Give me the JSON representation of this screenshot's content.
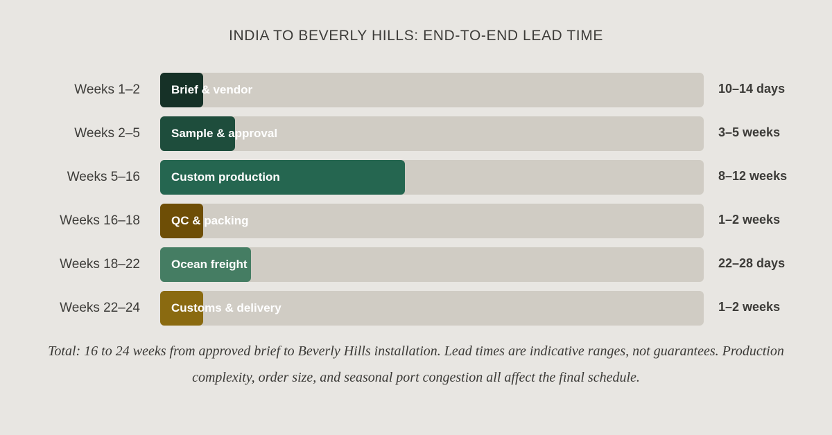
{
  "chart_data": {
    "type": "bar",
    "orientation": "horizontal",
    "title": "INDIA TO BEVERLY HILLS: END-TO-END LEAD TIME",
    "xlabel": "",
    "ylabel": "",
    "xlim": [
      0,
      24
    ],
    "categories": [
      "Weeks 1–2",
      "Weeks 2–5",
      "Weeks 5–16",
      "Weeks 16–18",
      "Weeks 18–22",
      "Weeks 22–24"
    ],
    "phases": [
      "Brief & vendor",
      "Sample & approval",
      "Custom production",
      "QC & packing",
      "Ocean freight",
      "Customs & delivery"
    ],
    "durations": [
      "10–14 days",
      "3–5 weeks",
      "8–12 weeks",
      "1–2 weeks",
      "22–28 days",
      "1–2 weeks"
    ],
    "values": [
      1.9,
      3.3,
      10.8,
      1.9,
      4.0,
      1.9
    ],
    "colors": [
      "#163127",
      "#1e4d3c",
      "#256650",
      "#6e4e06",
      "#457d63",
      "#8a6a10"
    ],
    "track_color": "#d0ccc4",
    "note": "Total: 16 to 24 weeks from approved brief to Beverly Hills installation. Lead times are indicative ranges, not guarantees. Production complexity, order size, and seasonal port congestion all affect the final schedule."
  }
}
